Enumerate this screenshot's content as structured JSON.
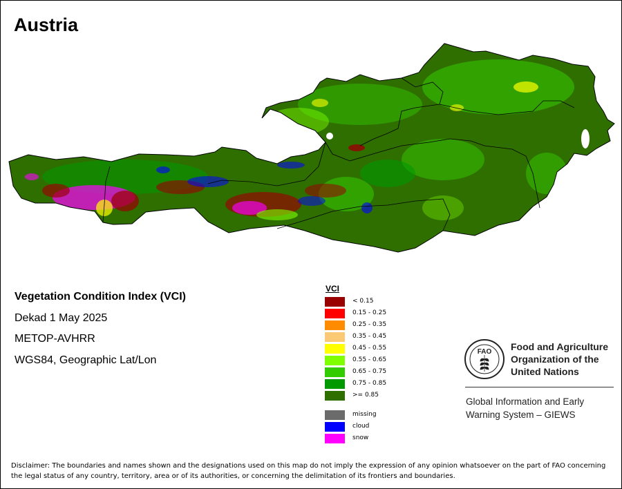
{
  "map": {
    "title": "Austria"
  },
  "info": {
    "product": "Vegetation Condition Index (VCI)",
    "period": "Dekad 1 May 2025",
    "sensor": "METOP-AVHRR",
    "projection": "WGS84, Geographic Lat/Lon"
  },
  "legend": {
    "title": "VCI",
    "classes": [
      {
        "label": "< 0.15",
        "color": "#990000"
      },
      {
        "label": "0.15 - 0.25",
        "color": "#ff0000"
      },
      {
        "label": "0.25 - 0.35",
        "color": "#ff8c00"
      },
      {
        "label": "0.35 - 0.45",
        "color": "#fbc973"
      },
      {
        "label": "0.45 - 0.55",
        "color": "#ffff00"
      },
      {
        "label": "0.55 - 0.65",
        "color": "#7fff00"
      },
      {
        "label": "0.65 - 0.75",
        "color": "#33cc00"
      },
      {
        "label": "0.75 - 0.85",
        "color": "#009900"
      },
      {
        "label": ">= 0.85",
        "color": "#2f6f00"
      }
    ],
    "special": [
      {
        "label": "missing",
        "color": "#6b6b6b"
      },
      {
        "label": "cloud",
        "color": "#0000ff"
      },
      {
        "label": "snow",
        "color": "#ff00ff"
      }
    ]
  },
  "organization": {
    "logo_text": "FAO",
    "name_line1": "Food and Agriculture",
    "name_line2": "Organization of the",
    "name_line3": "United Nations",
    "system_line1": "Global Information and Early",
    "system_line2": "Warning System – GIEWS"
  },
  "disclaimer": "Disclaimer: The boundaries and names shown and the designations used on this map do not imply the expression of any opinion whatsoever on the part of FAO concerning the legal status of any country, territory, area or of its authorities, or concerning the delimitation of its frontiers and boundaries."
}
